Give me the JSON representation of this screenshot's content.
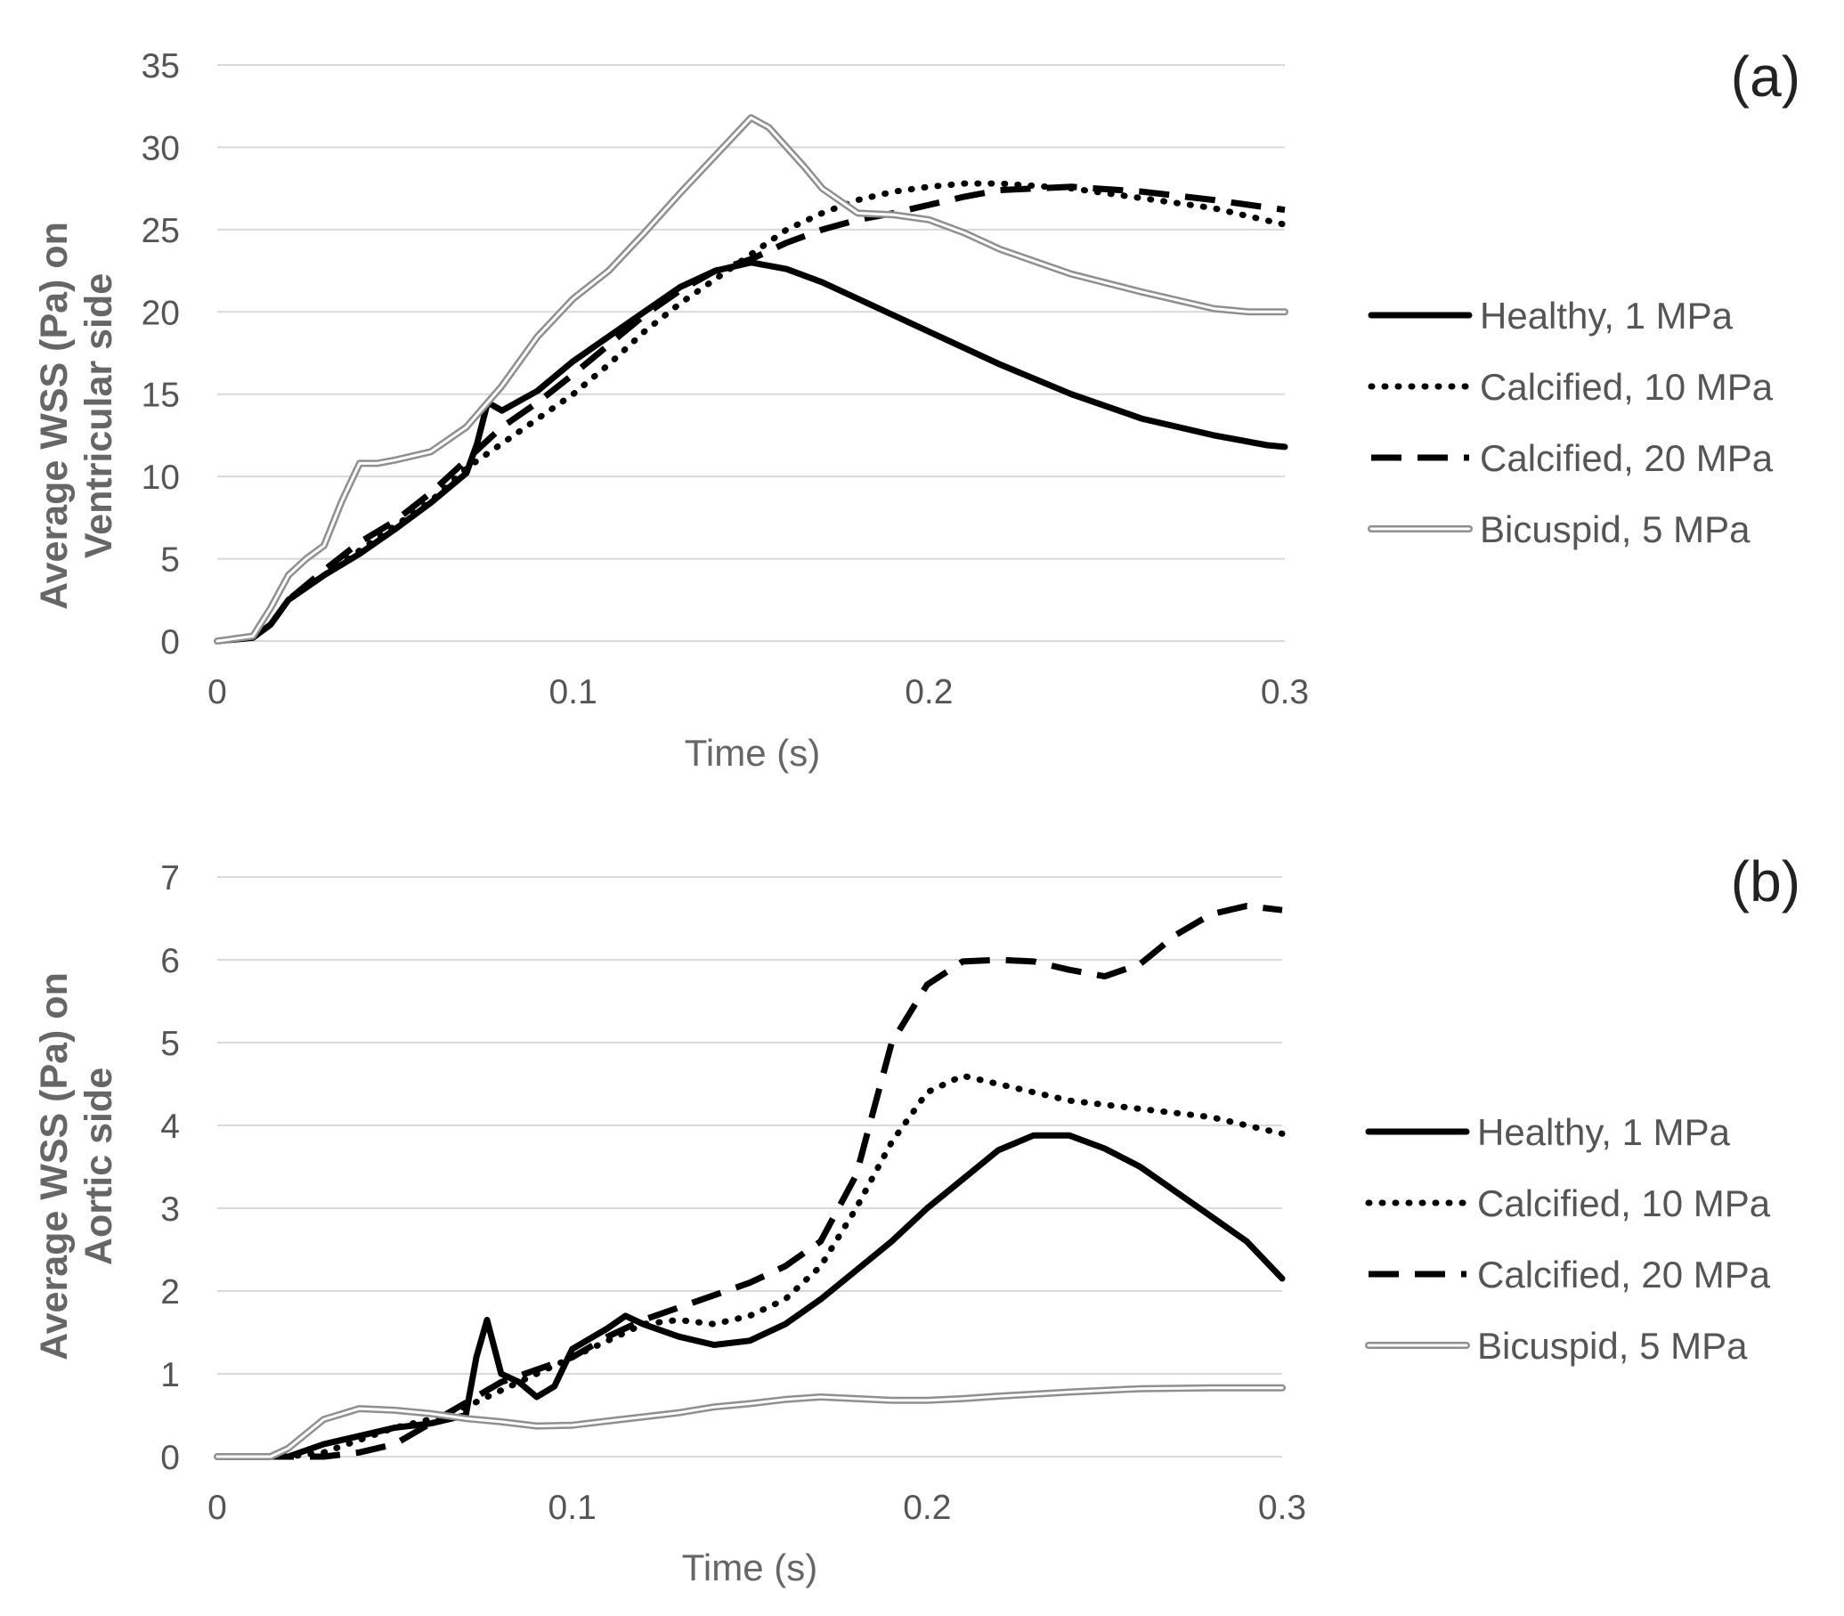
{
  "chart_data": [
    {
      "type": "line",
      "panel_label": "(a)",
      "xlabel": "Time (s)",
      "ylabel_lines": [
        "Average WSS (Pa) on",
        "Ventricular side"
      ],
      "xlim": [
        0,
        0.3
      ],
      "ylim": [
        0,
        35
      ],
      "xticks": [
        "0",
        "0.1",
        "0.2",
        "0.3"
      ],
      "yticks": [
        "0",
        "5",
        "10",
        "15",
        "20",
        "25",
        "30",
        "35"
      ],
      "grid": true,
      "legend_position": "right",
      "series": [
        {
          "name": "Healthy, 1 MPa",
          "style": "solid",
          "x": [
            0,
            0.01,
            0.015,
            0.02,
            0.03,
            0.04,
            0.05,
            0.06,
            0.07,
            0.073,
            0.076,
            0.08,
            0.09,
            0.1,
            0.11,
            0.12,
            0.13,
            0.14,
            0.15,
            0.16,
            0.17,
            0.18,
            0.19,
            0.2,
            0.22,
            0.24,
            0.26,
            0.28,
            0.295,
            0.3
          ],
          "y": [
            0,
            0.2,
            1,
            2.5,
            4,
            5.3,
            6.8,
            8.4,
            10.2,
            12,
            14.5,
            14,
            15.2,
            17,
            18.5,
            20,
            21.5,
            22.5,
            23,
            22.6,
            21.8,
            20.8,
            19.8,
            18.8,
            16.8,
            15,
            13.5,
            12.5,
            11.9,
            11.8
          ]
        },
        {
          "name": "Calcified, 10 MPa",
          "style": "dotted",
          "x": [
            0,
            0.01,
            0.015,
            0.02,
            0.03,
            0.04,
            0.05,
            0.06,
            0.07,
            0.08,
            0.09,
            0.1,
            0.11,
            0.12,
            0.13,
            0.14,
            0.15,
            0.16,
            0.17,
            0.18,
            0.19,
            0.2,
            0.21,
            0.22,
            0.24,
            0.26,
            0.28,
            0.3
          ],
          "y": [
            0,
            0.2,
            1,
            2.5,
            4,
            5.5,
            7,
            8.5,
            10.5,
            12,
            13.5,
            15,
            16.8,
            18.8,
            20.5,
            22,
            23.5,
            25,
            26,
            26.8,
            27.3,
            27.6,
            27.8,
            27.8,
            27.5,
            26.9,
            26.3,
            25.3
          ]
        },
        {
          "name": "Calcified, 20 MPa",
          "style": "dashed",
          "x": [
            0,
            0.01,
            0.015,
            0.02,
            0.03,
            0.04,
            0.05,
            0.06,
            0.07,
            0.08,
            0.09,
            0.1,
            0.11,
            0.12,
            0.13,
            0.14,
            0.15,
            0.16,
            0.17,
            0.18,
            0.19,
            0.2,
            0.21,
            0.22,
            0.24,
            0.26,
            0.28,
            0.3
          ],
          "y": [
            0,
            0.2,
            1,
            2.5,
            4.3,
            6,
            7.3,
            9,
            11,
            13,
            14.5,
            16.2,
            18,
            19.8,
            21.3,
            22.5,
            23.2,
            24.2,
            25,
            25.6,
            26,
            26.5,
            27,
            27.4,
            27.6,
            27.3,
            26.8,
            26.2
          ]
        },
        {
          "name": "Bicuspid, 5 MPa",
          "style": "double",
          "x": [
            0,
            0.01,
            0.015,
            0.02,
            0.025,
            0.03,
            0.035,
            0.04,
            0.045,
            0.05,
            0.06,
            0.07,
            0.08,
            0.09,
            0.1,
            0.11,
            0.12,
            0.13,
            0.14,
            0.15,
            0.155,
            0.16,
            0.165,
            0.17,
            0.18,
            0.19,
            0.2,
            0.21,
            0.22,
            0.24,
            0.26,
            0.28,
            0.29,
            0.3
          ],
          "y": [
            0,
            0.3,
            2,
            4,
            5,
            5.8,
            8.5,
            10.8,
            10.8,
            11,
            11.5,
            13,
            15.5,
            18.5,
            20.8,
            22.5,
            24.8,
            27.2,
            29.5,
            31.8,
            31.2,
            30,
            28.8,
            27.5,
            26,
            25.9,
            25.6,
            24.8,
            23.8,
            22.3,
            21.2,
            20.2,
            20,
            20
          ]
        }
      ]
    },
    {
      "type": "line",
      "panel_label": "(b)",
      "xlabel": "Time (s)",
      "ylabel_lines": [
        "Average WSS (Pa) on",
        "Aortic side"
      ],
      "xlim": [
        0,
        0.3
      ],
      "ylim": [
        0,
        7
      ],
      "xticks": [
        "0",
        "0.1",
        "0.2",
        "0.3"
      ],
      "yticks": [
        "0",
        "1",
        "2",
        "3",
        "4",
        "5",
        "6",
        "7"
      ],
      "grid": true,
      "legend_position": "right",
      "series": [
        {
          "name": "Healthy, 1 MPa",
          "style": "solid",
          "x": [
            0,
            0.02,
            0.03,
            0.04,
            0.05,
            0.06,
            0.07,
            0.073,
            0.076,
            0.08,
            0.085,
            0.09,
            0.095,
            0.1,
            0.11,
            0.115,
            0.12,
            0.13,
            0.14,
            0.15,
            0.16,
            0.17,
            0.18,
            0.19,
            0.2,
            0.21,
            0.22,
            0.23,
            0.24,
            0.25,
            0.26,
            0.27,
            0.28,
            0.29,
            0.3
          ],
          "y": [
            0,
            0,
            0.15,
            0.25,
            0.35,
            0.4,
            0.5,
            1.2,
            1.65,
            1.0,
            0.9,
            0.72,
            0.85,
            1.3,
            1.55,
            1.7,
            1.6,
            1.45,
            1.35,
            1.4,
            1.6,
            1.9,
            2.25,
            2.6,
            3.0,
            3.35,
            3.7,
            3.88,
            3.88,
            3.72,
            3.5,
            3.2,
            2.9,
            2.6,
            2.15
          ]
        },
        {
          "name": "Calcified, 10 MPa",
          "style": "dotted",
          "x": [
            0,
            0.02,
            0.03,
            0.04,
            0.05,
            0.06,
            0.07,
            0.08,
            0.09,
            0.1,
            0.11,
            0.12,
            0.13,
            0.14,
            0.15,
            0.16,
            0.17,
            0.18,
            0.19,
            0.2,
            0.21,
            0.22,
            0.24,
            0.26,
            0.28,
            0.3
          ],
          "y": [
            0,
            0,
            0.05,
            0.2,
            0.35,
            0.45,
            0.6,
            0.8,
            1.0,
            1.2,
            1.4,
            1.6,
            1.65,
            1.6,
            1.7,
            1.9,
            2.3,
            3.0,
            3.8,
            4.4,
            4.6,
            4.5,
            4.3,
            4.2,
            4.1,
            3.9
          ]
        },
        {
          "name": "Calcified, 20 MPa",
          "style": "dashed",
          "x": [
            0,
            0.03,
            0.04,
            0.05,
            0.06,
            0.07,
            0.08,
            0.09,
            0.1,
            0.11,
            0.12,
            0.13,
            0.14,
            0.15,
            0.16,
            0.17,
            0.18,
            0.185,
            0.19,
            0.2,
            0.21,
            0.22,
            0.23,
            0.24,
            0.25,
            0.26,
            0.27,
            0.28,
            0.29,
            0.3
          ],
          "y": [
            0,
            0,
            0.05,
            0.15,
            0.4,
            0.65,
            0.9,
            1.05,
            1.2,
            1.45,
            1.65,
            1.8,
            1.95,
            2.1,
            2.3,
            2.6,
            3.4,
            4.2,
            5.0,
            5.7,
            5.98,
            6.0,
            5.98,
            5.88,
            5.8,
            5.95,
            6.3,
            6.55,
            6.65,
            6.6
          ]
        },
        {
          "name": "Bicuspid, 5 MPa",
          "style": "double",
          "x": [
            0,
            0.015,
            0.02,
            0.03,
            0.04,
            0.05,
            0.06,
            0.07,
            0.08,
            0.09,
            0.1,
            0.11,
            0.12,
            0.13,
            0.14,
            0.15,
            0.16,
            0.17,
            0.18,
            0.19,
            0.2,
            0.21,
            0.22,
            0.24,
            0.26,
            0.28,
            0.3
          ],
          "y": [
            0,
            0,
            0.1,
            0.45,
            0.58,
            0.56,
            0.52,
            0.46,
            0.42,
            0.37,
            0.38,
            0.43,
            0.48,
            0.53,
            0.6,
            0.64,
            0.69,
            0.72,
            0.7,
            0.68,
            0.68,
            0.7,
            0.73,
            0.78,
            0.82,
            0.83,
            0.83
          ]
        }
      ]
    }
  ]
}
